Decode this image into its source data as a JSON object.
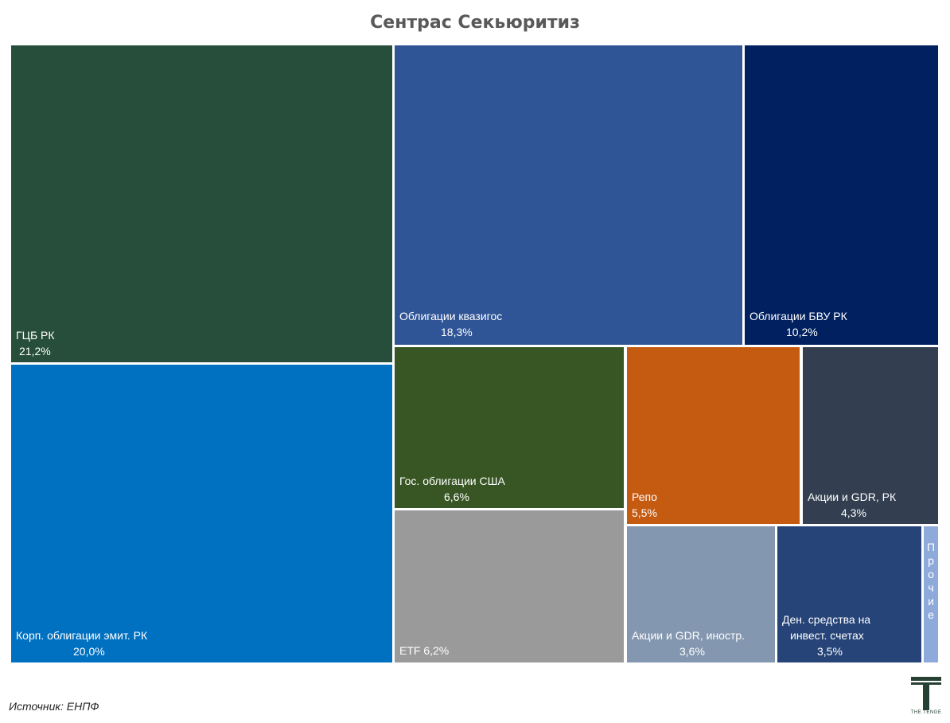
{
  "chart_data": {
    "type": "treemap",
    "title": "Сентрас Секьюритиз",
    "tiles": [
      {
        "label": "ГЦБ РК",
        "value_text": "21,2%",
        "value": 21.2,
        "color": "#274e3a"
      },
      {
        "label": "Корп. облигации эмит. РК",
        "value_text": "20,0%",
        "value": 20.0,
        "color": "#0070c0"
      },
      {
        "label": "Облигации квазигос",
        "value_text": "18,3%",
        "value": 18.3,
        "color": "#2f5597"
      },
      {
        "label": "Облигации БВУ РК",
        "value_text": "10,2%",
        "value": 10.2,
        "color": "#002060"
      },
      {
        "label": "Гос. облигации США",
        "value_text": "6,6%",
        "value": 6.6,
        "color": "#375623"
      },
      {
        "label": "ETF",
        "value_text": "6,2%",
        "value": 6.2,
        "color": "#9a9a9a"
      },
      {
        "label": "Репо",
        "value_text": "5,5%",
        "value": 5.5,
        "color": "#c55a11"
      },
      {
        "label": "Акции и GDR, РК",
        "value_text": "4,3%",
        "value": 4.3,
        "color": "#333f50"
      },
      {
        "label": "Акции и GDR, иностр.",
        "value_text": "3,6%",
        "value": 3.6,
        "color": "#8497b0"
      },
      {
        "label": "Ден. средства на инвест. счетах",
        "value_text": "3,5%",
        "value": 3.5,
        "color": "#264478"
      },
      {
        "label": "Прочие",
        "value_text": "",
        "value": null,
        "color": "#8eaadb"
      }
    ]
  },
  "source": "Источник: ЕНПФ",
  "logo_text": "THE TENGE"
}
